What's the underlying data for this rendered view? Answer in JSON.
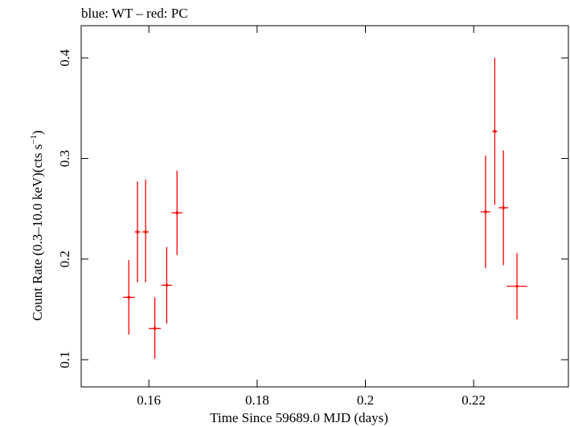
{
  "chart_data": {
    "type": "scatter",
    "title": "blue: WT – red: PC",
    "xlabel": "Time Since 59689.0 MJD (days)",
    "ylabel_main": "Count Rate (0.3–10.0 keV)(cts s",
    "ylabel_sup": "−1",
    "ylabel_close": ")",
    "xlim": [
      0.1475,
      0.2375
    ],
    "ylim": [
      0.073,
      0.432
    ],
    "x_ticks": [
      {
        "value": 0.16,
        "label": "0.16"
      },
      {
        "value": 0.18,
        "label": "0.18"
      },
      {
        "value": 0.2,
        "label": "0.2"
      },
      {
        "value": 0.22,
        "label": "0.22"
      }
    ],
    "y_ticks": [
      {
        "value": 0.1,
        "label": "0.1"
      },
      {
        "value": 0.2,
        "label": "0.2"
      },
      {
        "value": 0.3,
        "label": "0.3"
      },
      {
        "value": 0.4,
        "label": "0.4"
      }
    ],
    "grid": false,
    "series": [
      {
        "color": "#ff0000",
        "points": [
          {
            "x": 0.1563,
            "xerr": 0.0011,
            "y": 0.162,
            "yerr": [
              0.037,
              0.037
            ]
          },
          {
            "x": 0.1579,
            "xerr": 0.0005,
            "y": 0.227,
            "yerr": [
              0.05,
              0.05
            ]
          },
          {
            "x": 0.1594,
            "xerr": 0.0006,
            "y": 0.227,
            "yerr": [
              0.05,
              0.052
            ]
          },
          {
            "x": 0.1611,
            "xerr": 0.0011,
            "y": 0.131,
            "yerr": [
              0.03,
              0.031
            ]
          },
          {
            "x": 0.1633,
            "xerr": 0.001,
            "y": 0.174,
            "yerr": [
              0.038,
              0.038
            ]
          },
          {
            "x": 0.1652,
            "xerr": 0.001,
            "y": 0.246,
            "yerr": [
              0.042,
              0.042
            ]
          },
          {
            "x": 0.2222,
            "xerr": 0.0009,
            "y": 0.247,
            "yerr": [
              0.056,
              0.056
            ]
          },
          {
            "x": 0.2239,
            "xerr": 0.0005,
            "y": 0.327,
            "yerr": [
              0.073,
              0.073
            ]
          },
          {
            "x": 0.2255,
            "xerr": 0.0009,
            "y": 0.251,
            "yerr": [
              0.057,
              0.057
            ]
          },
          {
            "x": 0.228,
            "xerr": 0.0019,
            "y": 0.173,
            "yerr": [
              0.033,
              0.033
            ]
          }
        ]
      }
    ]
  }
}
